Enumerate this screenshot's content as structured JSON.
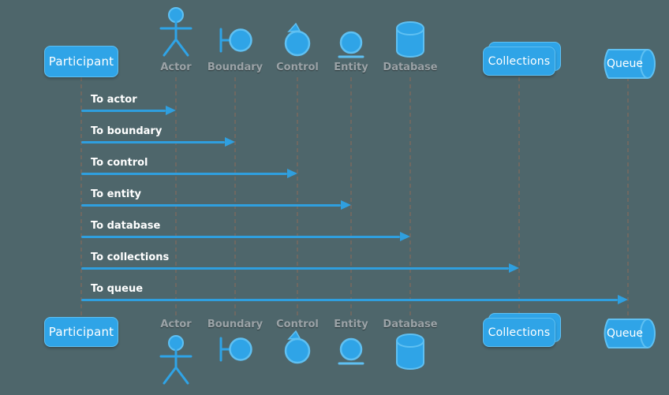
{
  "diagram": {
    "kind": "uml-sequence-diagram",
    "colors": {
      "background": "#4e666b",
      "shape_fill": "#2fa4e7",
      "shape_stroke": "#5fc0f2",
      "arrow": "#2f9fdf",
      "message_text": "#ffffff",
      "participant_label_text": "#9ba3a7",
      "box_label_text": "#ffffff",
      "lifeline": "#6e6862"
    },
    "participants": [
      {
        "id": "participant",
        "label": "Participant",
        "shape": "box"
      },
      {
        "id": "actor",
        "label": "Actor",
        "shape": "actor",
        "icon": "actor-icon"
      },
      {
        "id": "boundary",
        "label": "Boundary",
        "shape": "boundary",
        "icon": "boundary-icon"
      },
      {
        "id": "control",
        "label": "Control",
        "shape": "control",
        "icon": "control-icon"
      },
      {
        "id": "entity",
        "label": "Entity",
        "shape": "entity",
        "icon": "entity-icon"
      },
      {
        "id": "database",
        "label": "Database",
        "shape": "database",
        "icon": "database-icon"
      },
      {
        "id": "collections",
        "label": "Collections",
        "shape": "collections"
      },
      {
        "id": "queue",
        "label": "Queue",
        "shape": "queue"
      }
    ],
    "messages": [
      {
        "label": "To actor",
        "from": "participant",
        "to": "actor"
      },
      {
        "label": "To boundary",
        "from": "participant",
        "to": "boundary"
      },
      {
        "label": "To control",
        "from": "participant",
        "to": "control"
      },
      {
        "label": "To entity",
        "from": "participant",
        "to": "entity"
      },
      {
        "label": "To database",
        "from": "participant",
        "to": "database"
      },
      {
        "label": "To collections",
        "from": "participant",
        "to": "collections"
      },
      {
        "label": "To queue",
        "from": "participant",
        "to": "queue"
      }
    ]
  }
}
